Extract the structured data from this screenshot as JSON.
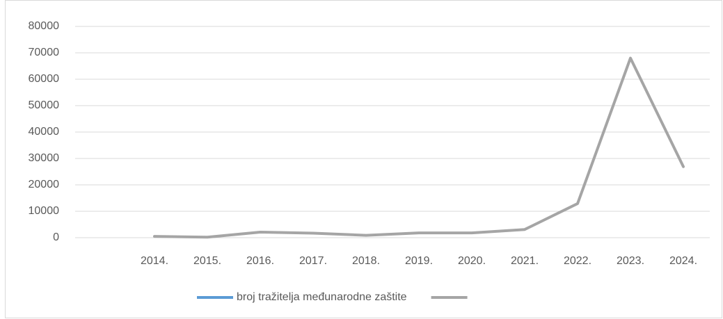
{
  "chart_data": {
    "type": "line",
    "categories": [
      null,
      "2014.",
      "2015.",
      "2016.",
      "2017.",
      "2018.",
      "2019.",
      "2020.",
      "2021.",
      "2022.",
      "2023.",
      "2024."
    ],
    "series": [
      {
        "name": "broj tražitelja međunarodne zaštite",
        "color": "#5b9bd5",
        "values": [
          null,
          null,
          null,
          null,
          null,
          null,
          null,
          null,
          null,
          null,
          null,
          null
        ]
      },
      {
        "color": "#a5a5a5",
        "values": [
          null,
          500,
          200,
          2100,
          1700,
          900,
          1800,
          1800,
          3100,
          12900,
          68000,
          26900
        ]
      }
    ],
    "ylim": [
      0,
      80000
    ],
    "yticks": [
      0,
      10000,
      20000,
      30000,
      40000,
      50000,
      60000,
      70000,
      80000
    ],
    "grid": true
  }
}
